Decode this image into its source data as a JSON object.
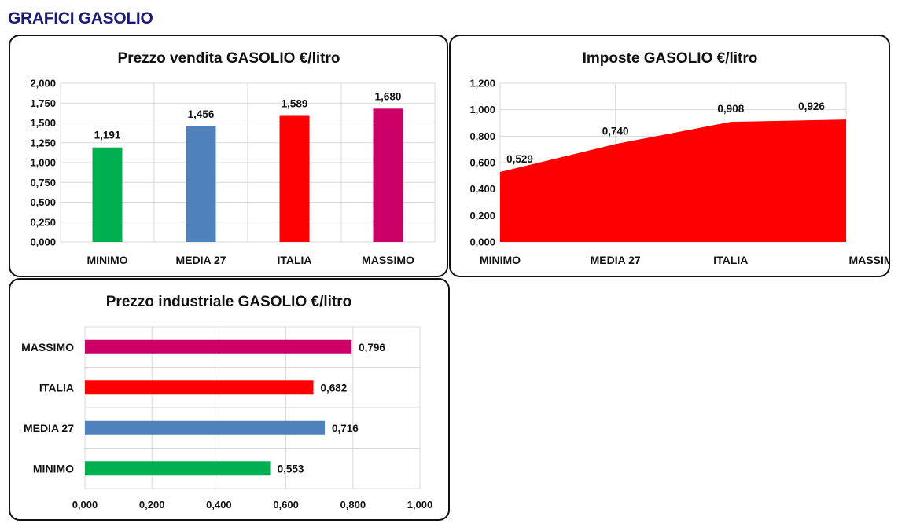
{
  "page_title": "GRAFICI GASOLIO",
  "chart_data": [
    {
      "id": "vendita",
      "type": "bar",
      "title": "Prezzo vendita GASOLIO €/litro",
      "categories": [
        "MINIMO",
        "MEDIA 27",
        "ITALIA",
        "MASSIMO"
      ],
      "values": [
        1.191,
        1.456,
        1.589,
        1.68
      ],
      "data_labels": [
        "1,191",
        "1,456",
        "1,589",
        "1,680"
      ],
      "colors": [
        "#00b050",
        "#4f81bd",
        "#ff0000",
        "#cc0066"
      ],
      "ylim": [
        0,
        2
      ],
      "yticks": [
        0,
        0.25,
        0.5,
        0.75,
        1,
        1.25,
        1.5,
        1.75,
        2
      ],
      "ytick_labels": [
        "0,000",
        "0,250",
        "0,500",
        "0,750",
        "1,000",
        "1,250",
        "1,500",
        "1,750",
        "2,000"
      ],
      "grid": true,
      "legend": "none"
    },
    {
      "id": "imposte",
      "type": "area",
      "title": "Imposte GASOLIO €/litro",
      "categories": [
        "MINIMO",
        "MEDIA 27",
        "ITALIA",
        "MASSIMO"
      ],
      "values": [
        0.529,
        0.74,
        0.908,
        0.926
      ],
      "data_labels": [
        "0,529",
        "0,740",
        "0,908",
        "0,926"
      ],
      "color": "#ff0000",
      "ylim": [
        0,
        1.2
      ],
      "yticks": [
        0,
        0.2,
        0.4,
        0.6,
        0.8,
        1,
        1.2
      ],
      "ytick_labels": [
        "0,000",
        "0,200",
        "0,400",
        "0,600",
        "0,800",
        "1,000",
        "1,200"
      ],
      "grid": true,
      "legend": "none"
    },
    {
      "id": "industriale",
      "type": "bar",
      "orientation": "horizontal",
      "title": "Prezzo industriale GASOLIO €/litro",
      "categories": [
        "MASSIMO",
        "ITALIA",
        "MEDIA 27",
        "MINIMO"
      ],
      "values": [
        0.796,
        0.682,
        0.716,
        0.553
      ],
      "data_labels": [
        "0,796",
        "0,682",
        "0,716",
        "0,553"
      ],
      "colors": [
        "#cc0066",
        "#ff0000",
        "#4f81bd",
        "#00b050"
      ],
      "xlim": [
        0,
        1
      ],
      "xticks": [
        0,
        0.2,
        0.4,
        0.6,
        0.8,
        1
      ],
      "xtick_labels": [
        "0,000",
        "0,200",
        "0,400",
        "0,600",
        "0,800",
        "1,000"
      ],
      "grid": true,
      "legend": "none"
    }
  ]
}
